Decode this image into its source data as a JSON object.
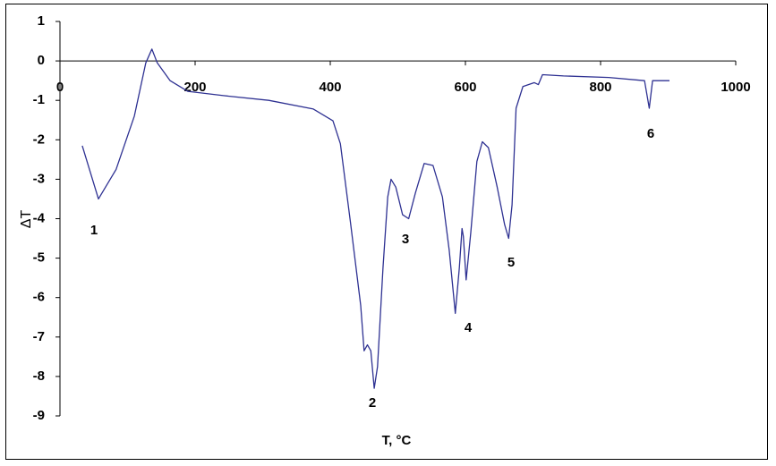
{
  "chart_data": {
    "type": "line",
    "x_label": "T, °C",
    "y_label": "ΔT",
    "xlim": [
      0,
      1000
    ],
    "xticks": [
      0,
      200,
      400,
      600,
      800,
      1000
    ],
    "ylim": [
      -9,
      1
    ],
    "yticks": [
      1,
      0,
      -1,
      -2,
      -3,
      -4,
      -5,
      -6,
      -7,
      -8,
      -9
    ],
    "annotations": [
      "1",
      "2",
      "3",
      "4",
      "5",
      "6"
    ],
    "x": [
      33,
      57,
      83,
      110,
      127,
      136,
      144,
      163,
      189,
      242,
      309,
      375,
      404,
      415,
      430,
      445,
      450,
      455,
      460,
      465,
      470,
      478,
      485,
      490,
      497,
      507,
      516,
      526,
      539,
      552,
      566,
      576,
      585,
      591,
      595,
      597,
      601,
      608,
      617,
      625,
      634,
      647,
      658,
      664,
      669,
      675,
      685,
      702,
      708,
      714,
      745,
      812,
      865,
      872,
      877,
      902
    ],
    "series": [
      {
        "color": "#2e3192",
        "values": [
          -2.15,
          -3.5,
          -2.75,
          -1.4,
          -0.05,
          0.3,
          -0.05,
          -0.5,
          -0.77,
          -0.88,
          -1.0,
          -1.22,
          -1.52,
          -2.1,
          -4.1,
          -6.2,
          -7.35,
          -7.2,
          -7.35,
          -8.3,
          -7.75,
          -5.25,
          -3.45,
          -3.0,
          -3.2,
          -3.9,
          -4.0,
          -3.35,
          -2.6,
          -2.65,
          -3.45,
          -4.8,
          -6.4,
          -5.25,
          -4.25,
          -4.45,
          -5.55,
          -4.35,
          -2.55,
          -2.05,
          -2.2,
          -3.2,
          -4.15,
          -4.5,
          -3.65,
          -1.2,
          -0.65,
          -0.55,
          -0.6,
          -0.35,
          -0.38,
          -0.42,
          -0.5,
          -1.2,
          -0.5,
          -0.5
        ]
      }
    ]
  }
}
